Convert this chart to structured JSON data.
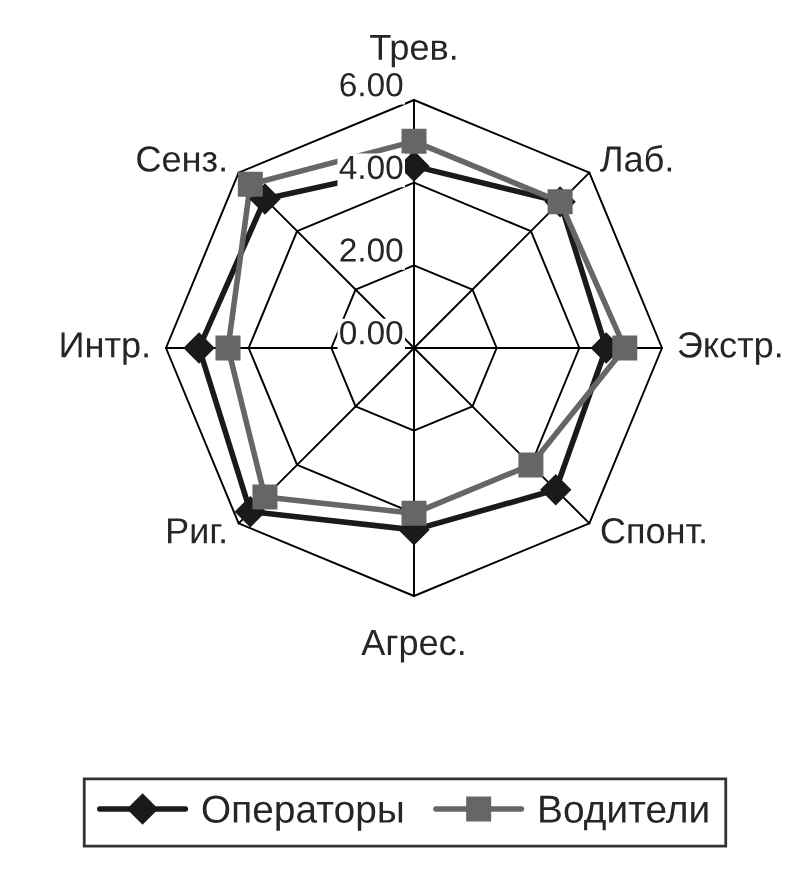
{
  "chart_data": {
    "type": "radar",
    "categories": [
      "Трев.",
      "Лаб.",
      "Экстр.",
      "Спонт.",
      "Агрес.",
      "Риг.",
      "Интр.",
      "Сенз."
    ],
    "series": [
      {
        "name": "Операторы",
        "color": "#1a1a1a",
        "marker": "diamond",
        "values": [
          4.4,
          5.0,
          4.65,
          4.85,
          4.4,
          5.6,
          5.2,
          5.1
        ]
      },
      {
        "name": "Водители",
        "color": "#666666",
        "marker": "square",
        "values": [
          5.0,
          5.0,
          5.1,
          4.0,
          4.0,
          5.1,
          4.5,
          5.6
        ]
      }
    ],
    "ylim": [
      0,
      6
    ],
    "yticks": [
      {
        "value": 0,
        "label": "0.00"
      },
      {
        "value": 2,
        "label": "2.00"
      },
      {
        "value": 4,
        "label": "4.00"
      },
      {
        "value": 6,
        "label": "6.00"
      }
    ],
    "legend": "bottom"
  }
}
